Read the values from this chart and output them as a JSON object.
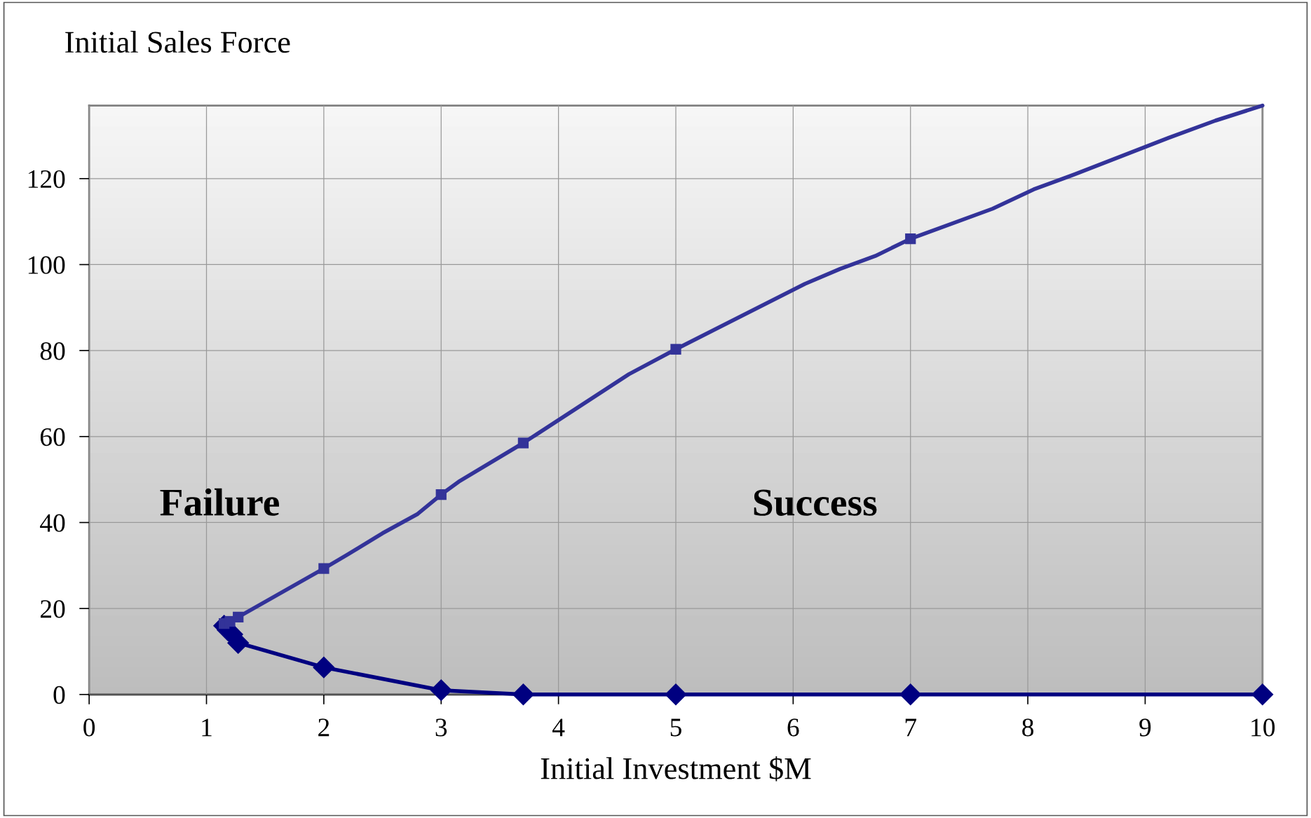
{
  "chart_data": {
    "type": "line",
    "ylabel": "Initial Sales Force",
    "xlabel": "Initial Investment $M",
    "xlim": [
      0,
      10
    ],
    "xticks": [
      0,
      1,
      2,
      3,
      4,
      5,
      6,
      7,
      8,
      9,
      10
    ],
    "ylim": [
      0,
      137
    ],
    "yticks": [
      0,
      20,
      40,
      60,
      80,
      100,
      120
    ],
    "grid": true,
    "annotations": [
      "Failure",
      "Success"
    ],
    "series": [
      {
        "color": "#333399",
        "marker": "none",
        "x": [
          1.15,
          1.2,
          1.27,
          2,
          2.2,
          2.5,
          2.8,
          3,
          3.15,
          3.7,
          4.6,
          5,
          6.1,
          6.4,
          6.7,
          7,
          7.7,
          8.05,
          8.4,
          9.2,
          9.6,
          10
        ],
        "values": [
          16.5,
          17,
          18,
          29.3,
          32.5,
          37.5,
          42,
          46.5,
          49.5,
          58.5,
          74.5,
          80.3,
          95.5,
          99,
          102,
          106,
          113,
          117.5,
          121,
          129.5,
          133.5,
          137
        ]
      },
      {
        "type": "scatter",
        "color": "#333399",
        "marker": "square",
        "x": [
          1.15,
          1.2,
          1.27,
          2,
          3,
          3.7,
          5,
          7
        ],
        "values": [
          16.5,
          17,
          18,
          29.3,
          46.5,
          58.5,
          80.3,
          106
        ]
      },
      {
        "color": "#000080",
        "marker": "diamond",
        "x": [
          1.15,
          1.18,
          1.22,
          1.27,
          2,
          3,
          3.7,
          5,
          7,
          10
        ],
        "values": [
          16,
          15,
          14,
          12,
          6.3,
          1,
          0,
          0,
          0,
          0
        ]
      }
    ]
  }
}
